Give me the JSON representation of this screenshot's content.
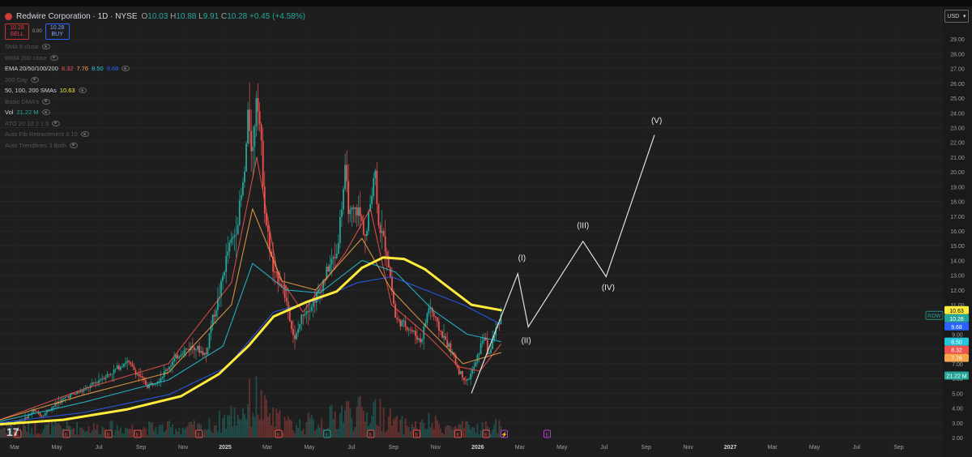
{
  "header": {
    "symbol_title": "Redwire Corporation · 1D · NYSE",
    "open_label": "O",
    "open": "10.03",
    "high_label": "H",
    "high": "10.88",
    "low_label": "L",
    "low": "9.91",
    "close_label": "C",
    "close": "10.28",
    "change": "+0.45 (+4.58%)"
  },
  "trade": {
    "sell_price": "10.28",
    "sell_label": "SELL",
    "spread": "0.00",
    "buy_price": "10.28",
    "buy_label": "BUY"
  },
  "indicators": [
    {
      "name": "SMA 8 close",
      "values": [],
      "dim": true
    },
    {
      "name": "WMA 200 close",
      "values": [],
      "dim": true
    },
    {
      "name": "EMA 20/50/100/200",
      "values": [
        {
          "v": "8.32",
          "c": "#f0544f"
        },
        {
          "v": "7.76",
          "c": "#f7a54a"
        },
        {
          "v": "8.50",
          "c": "#26c6da"
        },
        {
          "v": "9.68",
          "c": "#2962ff"
        }
      ],
      "dim": false
    },
    {
      "name": "200 Day",
      "values": [],
      "dim": true
    },
    {
      "name": "50, 100, 200 SMAs",
      "values": [
        {
          "v": "10.63",
          "c": "#ffeb3b"
        }
      ],
      "dim": false
    },
    {
      "name": "Basic DMA's",
      "values": [],
      "dim": true
    },
    {
      "name": "Vol",
      "values": [
        {
          "v": "21.22 M",
          "c": "#26a69a"
        }
      ],
      "dim": false
    },
    {
      "name": "ATO 20 10 2 1.5",
      "values": [],
      "dim": true
    },
    {
      "name": "Auto Fib Retracement 3 10",
      "values": [],
      "dim": true
    },
    {
      "name": "Auto Trendlines 3 Both",
      "values": [],
      "dim": true
    }
  ],
  "currency": "USD",
  "colors": {
    "background": "#1e1e1e",
    "up": "#26a69a",
    "down": "#ef5350",
    "sma200": "#ffeb3b",
    "ema20": "#f0544f",
    "ema50": "#f7a54a",
    "ema100": "#26c6da",
    "ema200": "#2962ff",
    "projection": "#e0e0e0"
  },
  "chart_data": {
    "type": "line",
    "title": "Redwire Corporation · 1D · NYSE",
    "xlabel": "",
    "ylabel": "",
    "x_ticks": [
      "Mar",
      "May",
      "Jul",
      "Sep",
      "Nov",
      "2025",
      "Mar",
      "May",
      "Jul",
      "Sep",
      "Nov",
      "2026",
      "Mar",
      "May",
      "Jul",
      "Sep",
      "Nov",
      "2027",
      "Mar",
      "May",
      "Jul",
      "Sep"
    ],
    "y_ticks": [
      "2.00",
      "3.00",
      "4.00",
      "5.00",
      "6.00",
      "7.00",
      "8.00",
      "9.00",
      "10.00",
      "11.00",
      "12.00",
      "13.00",
      "14.00",
      "15.00",
      "16.00",
      "17.00",
      "18.00",
      "19.00",
      "20.00",
      "21.00",
      "22.00",
      "23.00",
      "24.00",
      "25.00",
      "26.00",
      "27.00",
      "28.00",
      "29.00"
    ],
    "ylim": [
      2,
      30
    ],
    "xlim": [
      0,
      22.4
    ],
    "price_path": [
      [
        0,
        2.9
      ],
      [
        0.3,
        3.0
      ],
      [
        0.6,
        3.3
      ],
      [
        0.8,
        3.8
      ],
      [
        1.0,
        3.5
      ],
      [
        1.3,
        4.2
      ],
      [
        1.6,
        4.8
      ],
      [
        2.0,
        5.2
      ],
      [
        2.4,
        6.0
      ],
      [
        2.7,
        6.5
      ],
      [
        3.0,
        7.2
      ],
      [
        3.3,
        6.2
      ],
      [
        3.5,
        5.5
      ],
      [
        3.8,
        6.0
      ],
      [
        4.0,
        6.8
      ],
      [
        4.3,
        7.8
      ],
      [
        4.6,
        8.2
      ],
      [
        4.9,
        7.6
      ],
      [
        5.0,
        9.5
      ],
      [
        5.2,
        11.5
      ],
      [
        5.4,
        14.5
      ],
      [
        5.6,
        16.0
      ],
      [
        5.8,
        19.5
      ],
      [
        5.9,
        24.0
      ],
      [
        6.0,
        21.0
      ],
      [
        6.1,
        26.0
      ],
      [
        6.2,
        22.0
      ],
      [
        6.3,
        17.0
      ],
      [
        6.5,
        13.0
      ],
      [
        6.7,
        12.5
      ],
      [
        6.9,
        10.0
      ],
      [
        7.0,
        8.5
      ],
      [
        7.2,
        10.5
      ],
      [
        7.4,
        11.0
      ],
      [
        7.6,
        12.0
      ],
      [
        7.8,
        13.5
      ],
      [
        8.0,
        14.5
      ],
      [
        8.2,
        20.0
      ],
      [
        8.3,
        17.0
      ],
      [
        8.5,
        17.5
      ],
      [
        8.7,
        15.5
      ],
      [
        8.9,
        20.5
      ],
      [
        9.0,
        16.5
      ],
      [
        9.2,
        14.5
      ],
      [
        9.4,
        10.0
      ],
      [
        9.7,
        9.5
      ],
      [
        10.0,
        8.5
      ],
      [
        10.2,
        11.0
      ],
      [
        10.4,
        9.5
      ],
      [
        10.7,
        8.0
      ],
      [
        10.9,
        6.5
      ],
      [
        11.1,
        5.8
      ],
      [
        11.3,
        7.0
      ],
      [
        11.5,
        9.0
      ],
      [
        11.6,
        7.5
      ],
      [
        11.8,
        9.5
      ],
      [
        11.9,
        10.28
      ]
    ],
    "series": [
      {
        "name": "SMA 200",
        "color": "#ffeb3b",
        "points": [
          [
            0,
            2.9
          ],
          [
            1.5,
            3.2
          ],
          [
            3,
            3.9
          ],
          [
            4.3,
            4.8
          ],
          [
            5.2,
            6.3
          ],
          [
            5.9,
            8.2
          ],
          [
            6.5,
            10.2
          ],
          [
            7.3,
            11.2
          ],
          [
            8.0,
            11.9
          ],
          [
            8.6,
            13.5
          ],
          [
            9.1,
            14.2
          ],
          [
            9.6,
            14.1
          ],
          [
            10.1,
            13.4
          ],
          [
            10.6,
            12.3
          ],
          [
            11.2,
            11.0
          ],
          [
            11.9,
            10.63
          ]
        ]
      },
      {
        "name": "EMA 200",
        "color": "#2962ff",
        "points": [
          [
            0,
            3.0
          ],
          [
            2,
            3.7
          ],
          [
            4,
            4.9
          ],
          [
            5.4,
            6.8
          ],
          [
            6.5,
            10.5
          ],
          [
            7.5,
            11.3
          ],
          [
            8.5,
            12.5
          ],
          [
            9.3,
            12.9
          ],
          [
            10.2,
            11.9
          ],
          [
            11.0,
            11.0
          ],
          [
            11.9,
            9.68
          ]
        ]
      },
      {
        "name": "EMA 100",
        "color": "#26c6da",
        "points": [
          [
            0,
            3.1
          ],
          [
            2,
            4.4
          ],
          [
            4,
            5.9
          ],
          [
            5.3,
            8.2
          ],
          [
            6.0,
            13.8
          ],
          [
            6.8,
            12.0
          ],
          [
            7.6,
            11.8
          ],
          [
            8.6,
            14.0
          ],
          [
            9.4,
            13.2
          ],
          [
            10.3,
            10.6
          ],
          [
            11.1,
            9.0
          ],
          [
            11.9,
            8.5
          ]
        ]
      },
      {
        "name": "EMA 50",
        "color": "#f7a54a",
        "points": [
          [
            0,
            3.2
          ],
          [
            2,
            4.9
          ],
          [
            4,
            6.4
          ],
          [
            5.5,
            11.0
          ],
          [
            6.0,
            17.5
          ],
          [
            6.7,
            12.6
          ],
          [
            7.5,
            12.0
          ],
          [
            8.6,
            15.5
          ],
          [
            9.3,
            12.0
          ],
          [
            10.2,
            9.3
          ],
          [
            11.0,
            7.0
          ],
          [
            11.9,
            7.76
          ]
        ]
      },
      {
        "name": "EMA 20",
        "color": "#f0544f",
        "points": [
          [
            0,
            3.2
          ],
          [
            2,
            5.3
          ],
          [
            4,
            7.0
          ],
          [
            5.5,
            12.5
          ],
          [
            6.1,
            21.0
          ],
          [
            6.6,
            13.0
          ],
          [
            7.2,
            10.5
          ],
          [
            8.2,
            14.5
          ],
          [
            8.8,
            17.5
          ],
          [
            9.3,
            11.0
          ],
          [
            10.2,
            8.8
          ],
          [
            10.9,
            6.8
          ],
          [
            11.4,
            6.5
          ],
          [
            11.9,
            8.32
          ]
        ]
      }
    ],
    "projection": {
      "points": [
        [
          11.2,
          5.0
        ],
        [
          12.3,
          13.1
        ],
        [
          12.55,
          9.5
        ],
        [
          13.85,
          15.3
        ],
        [
          14.4,
          12.9
        ],
        [
          15.55,
          22.5
        ]
      ],
      "labels": [
        {
          "text": "(I)",
          "x": 12.4,
          "y": 14.0
        },
        {
          "text": "(II)",
          "x": 12.5,
          "y": 8.4
        },
        {
          "text": "(III)",
          "x": 13.85,
          "y": 16.2
        },
        {
          "text": "(IV)",
          "x": 14.45,
          "y": 12.0
        },
        {
          "text": "(V)",
          "x": 15.6,
          "y": 23.3
        }
      ]
    },
    "price_labels": [
      {
        "text": "10.63",
        "y": 10.63,
        "bg": "#ffeb3b",
        "fg": "#000000"
      },
      {
        "text": "RDW",
        "y": 10.28,
        "bg": "#1e1e1e",
        "fg": "#26a69a"
      },
      {
        "text": "10.28",
        "y": 10.28,
        "bg": "#26a69a",
        "fg": "#ffffff"
      },
      {
        "text": "9.68",
        "y": 9.68,
        "bg": "#2962ff",
        "fg": "#ffffff"
      },
      {
        "text": "8.50",
        "y": 8.5,
        "bg": "#26c6da",
        "fg": "#ffffff"
      },
      {
        "text": "8.32",
        "y": 8.32,
        "bg": "#f0544f",
        "fg": "#ffffff"
      },
      {
        "text": "7.76",
        "y": 7.76,
        "bg": "#f7a54a",
        "fg": "#ffffff"
      },
      {
        "text": "21.22 M",
        "y": 6.2,
        "bg": "#26a69a",
        "fg": "#ffffff"
      }
    ],
    "event_markers": [
      {
        "x": 0.42,
        "label": "E",
        "color": "#ef5350"
      },
      {
        "x": 1.58,
        "label": "E",
        "color": "#ef5350"
      },
      {
        "x": 2.58,
        "label": "E",
        "color": "#ef5350"
      },
      {
        "x": 3.27,
        "label": "E",
        "color": "#ef5350"
      },
      {
        "x": 4.73,
        "label": "E",
        "color": "#ef5350"
      },
      {
        "x": 6.62,
        "label": "E",
        "color": "#ef5350"
      },
      {
        "x": 7.77,
        "label": "E",
        "color": "#26a69a"
      },
      {
        "x": 8.81,
        "label": "E",
        "color": "#ef5350"
      },
      {
        "x": 9.9,
        "label": "E",
        "color": "#ef5350"
      },
      {
        "x": 10.88,
        "label": "E",
        "color": "#ef5350"
      },
      {
        "x": 11.55,
        "label": "E",
        "color": "#ef5350"
      },
      {
        "x": 11.98,
        "label": "⚡",
        "color": "#b33cc8"
      },
      {
        "x": 13.0,
        "label": "E",
        "color": "#b33cc8"
      }
    ]
  }
}
